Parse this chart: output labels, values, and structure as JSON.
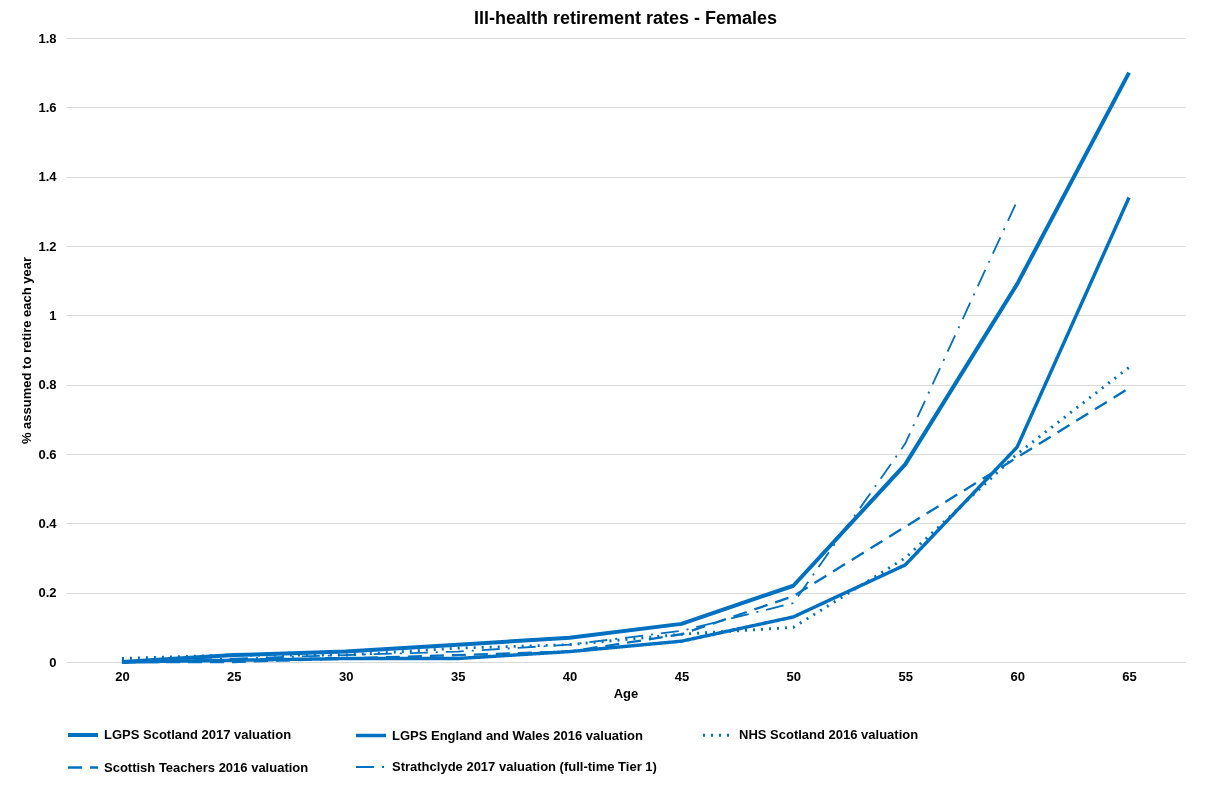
{
  "chart_data": {
    "type": "line",
    "title": "Ill-health retirement rates - Females",
    "xlabel": "Age",
    "ylabel": "% assumed to retire each year",
    "categories": [
      "20",
      "25",
      "30",
      "35",
      "40",
      "45",
      "50",
      "55",
      "60",
      "65"
    ],
    "ylim": [
      0,
      1.8
    ],
    "yticks": [
      0,
      0.2,
      0.4,
      0.6,
      0.8,
      1,
      1.2,
      1.4,
      1.6,
      1.8
    ],
    "grid": "y",
    "legend": "bottom",
    "marker": "none",
    "series": [
      {
        "name": "LGPS Scotland 2017 valuation",
        "color": "#0070c0",
        "line_style": "solid",
        "values": [
          0,
          0.02,
          0.03,
          0.05,
          0.07,
          0.11,
          0.22,
          0.57,
          1.09,
          1.7
        ]
      },
      {
        "name": "LGPS England and Wales 2016 valuation",
        "color": "#0070c0",
        "line_style": "double",
        "values": [
          0,
          0.005,
          0.01,
          0.01,
          0.03,
          0.06,
          0.13,
          0.28,
          0.62,
          1.34
        ]
      },
      {
        "name": "NHS Scotland 2016 valuation",
        "color": "#0070c0",
        "line_style": "dotted",
        "values": [
          0.01,
          0.02,
          0.02,
          0.04,
          0.05,
          0.08,
          0.1,
          0.3,
          0.6,
          0.85
        ]
      },
      {
        "name": "Scottish Teachers 2016 valuation",
        "color": "#0070c0",
        "line_style": "dashed",
        "values": [
          0,
          0,
          0.01,
          0.02,
          0.03,
          0.08,
          0.19,
          0.39,
          0.59,
          0.79
        ]
      },
      {
        "name": "Strathclyde 2017 valuation (full-time Tier 1)",
        "color": "#0070c0",
        "line_style": "dashdot",
        "values": [
          0,
          0.01,
          0.02,
          0.03,
          0.05,
          0.09,
          0.17,
          0.63,
          1.33,
          null
        ]
      }
    ]
  }
}
